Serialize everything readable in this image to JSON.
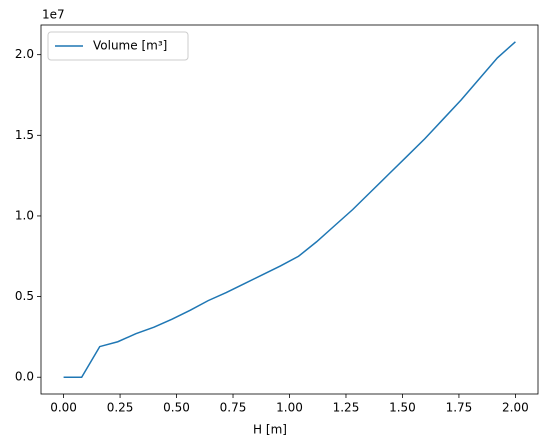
{
  "chart_data": {
    "type": "line",
    "x_label": "H [m]",
    "y_offset_label": "1e7",
    "x": [
      0,
      0.08,
      0.16,
      0.24,
      0.32,
      0.4,
      0.48,
      0.56,
      0.64,
      0.72,
      0.8,
      0.88,
      0.96,
      1.04,
      1.12,
      1.2,
      1.28,
      1.36,
      1.44,
      1.52,
      1.6,
      1.68,
      1.76,
      1.84,
      1.92,
      2.0
    ],
    "series": [
      {
        "name": "Volume [m³]",
        "color": "#1f77b4",
        "values": [
          0,
          0,
          1900000,
          2200000,
          2700000,
          3100000,
          3600000,
          4150000,
          4750000,
          5250000,
          5800000,
          6350000,
          6900000,
          7500000,
          8400000,
          9400000,
          10400000,
          11500000,
          12600000,
          13700000,
          14800000,
          16000000,
          17200000,
          18500000,
          19800000,
          20800000
        ]
      }
    ],
    "xlim": [
      -0.1,
      2.1
    ],
    "xticks": [
      {
        "value": 0,
        "label": "0.00"
      },
      0.25,
      {
        "value": 0.5,
        "label": "0.50"
      },
      0.75,
      {
        "value": 1,
        "label": "1.00"
      },
      1.25,
      {
        "value": 1.5,
        "label": "1.50"
      },
      1.75,
      {
        "value": 2,
        "label": "2.00"
      }
    ],
    "ylim": [
      -1040000,
      21840000
    ],
    "yticks": [
      {
        "value": 0,
        "label": "0.0"
      },
      {
        "value": 5000000,
        "label": "0.5"
      },
      {
        "value": 10000000,
        "label": "1.0"
      },
      {
        "value": 15000000,
        "label": "1.5"
      },
      {
        "value": 20000000,
        "label": "2.0"
      }
    ],
    "legend": "upper left",
    "grid": false
  }
}
